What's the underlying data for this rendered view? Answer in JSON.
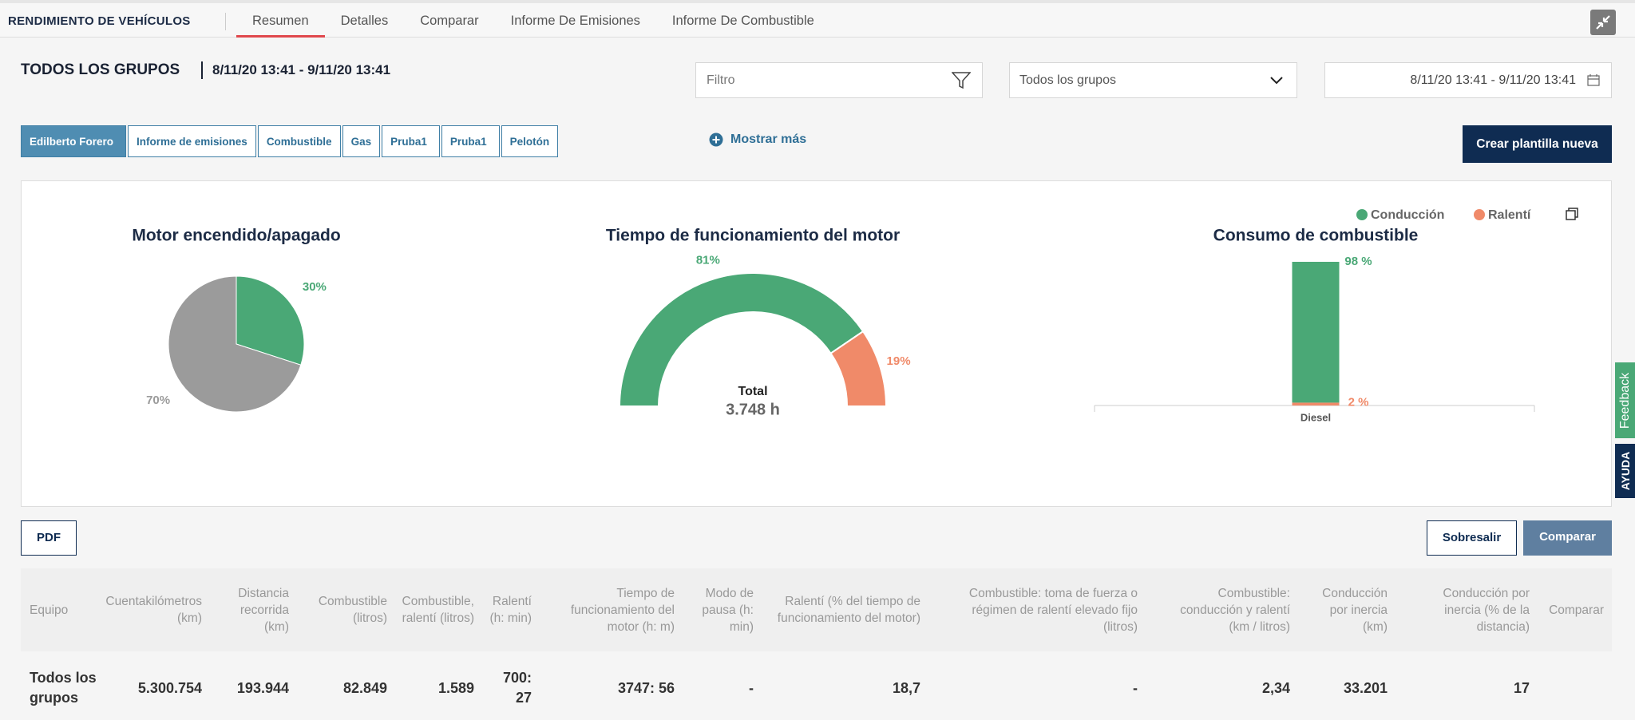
{
  "nav": {
    "title": "RENDIMIENTO DE VEHÍCULOS",
    "tabs": [
      "Resumen",
      "Detalles",
      "Comparar",
      "Informe De Emisiones",
      "Informe De Combustible"
    ],
    "active": 0
  },
  "header": {
    "title": "TODOS LOS GRUPOS",
    "date_range": "8/11/20 13:41 - 9/11/20 13:41"
  },
  "filters": {
    "search_placeholder": "Filtro",
    "group": "Todos los grupos",
    "date_range": "8/11/20 13:41 - 9/11/20 13:41"
  },
  "templates": {
    "items": [
      {
        "label": "Edilberto Forero",
        "editable": true
      },
      {
        "label": "Informe de emisiones",
        "editable": false
      },
      {
        "label": "Combustible",
        "editable": false
      },
      {
        "label": "Gas",
        "editable": false
      },
      {
        "label": "Pruba1",
        "editable": true
      },
      {
        "label": "Pruba1",
        "editable": true
      },
      {
        "label": "Pelotón",
        "editable": false
      }
    ],
    "active": 0,
    "more": "Mostrar más",
    "create": "Crear plantilla nueva"
  },
  "chart_data": [
    {
      "type": "pie",
      "title": "Motor encendido/apagado",
      "values": [
        30,
        70
      ],
      "value_labels": [
        "30%",
        "70%"
      ],
      "colors": [
        "#4aa876",
        "#9b9b9b"
      ]
    },
    {
      "type": "gauge",
      "title": "Tiempo de funcionamiento del motor",
      "values": [
        81,
        19
      ],
      "value_labels": [
        "81%",
        "19%"
      ],
      "colors": [
        "#4aa876",
        "#f08a69"
      ],
      "total_label": "Total",
      "total_value": "3.748 h"
    },
    {
      "type": "bar",
      "title": "Consumo de combustible",
      "categories": [
        "Diesel"
      ],
      "stacked": true,
      "ylim": [
        0,
        100
      ],
      "series": [
        {
          "name": "Conducción",
          "color": "#4aa876",
          "values": [
            98
          ],
          "value_labels": [
            "98 %"
          ]
        },
        {
          "name": "Ralentí",
          "color": "#f08a69",
          "values": [
            2
          ],
          "value_labels": [
            "2 %"
          ]
        }
      ]
    }
  ],
  "buttons": {
    "pdf": "PDF",
    "excel": "Sobresalir",
    "compare": "Comparar"
  },
  "table": {
    "columns": [
      "Equipo",
      "Cuentakilómetros (km)",
      "Distancia recorrida (km)",
      "Combustible (litros)",
      "Combustible, ralentí (litros)",
      "Ralentí (h: min)",
      "Tiempo de funcionamiento del motor (h: m)",
      "Modo de pausa (h: min)",
      "Ralentí (% del tiempo de funcionamiento del motor)",
      "Combustible: toma de fuerza o régimen de ralentí elevado fijo (litros)",
      "Combustible: conducción y ralentí (km / litros)",
      "Conducción por inercia (km)",
      "Conducción por inercia (% de la distancia)",
      "Comparar"
    ],
    "rows": [
      [
        "Todos los grupos",
        "5.300.754",
        "193.944",
        "82.849",
        "1.589",
        "700: 27",
        "3747: 56",
        "-",
        "18,7",
        "-",
        "2,34",
        "33.201",
        "17",
        ""
      ]
    ]
  },
  "side_tabs": {
    "feedback": "Feedback",
    "help": "AYUDA"
  }
}
